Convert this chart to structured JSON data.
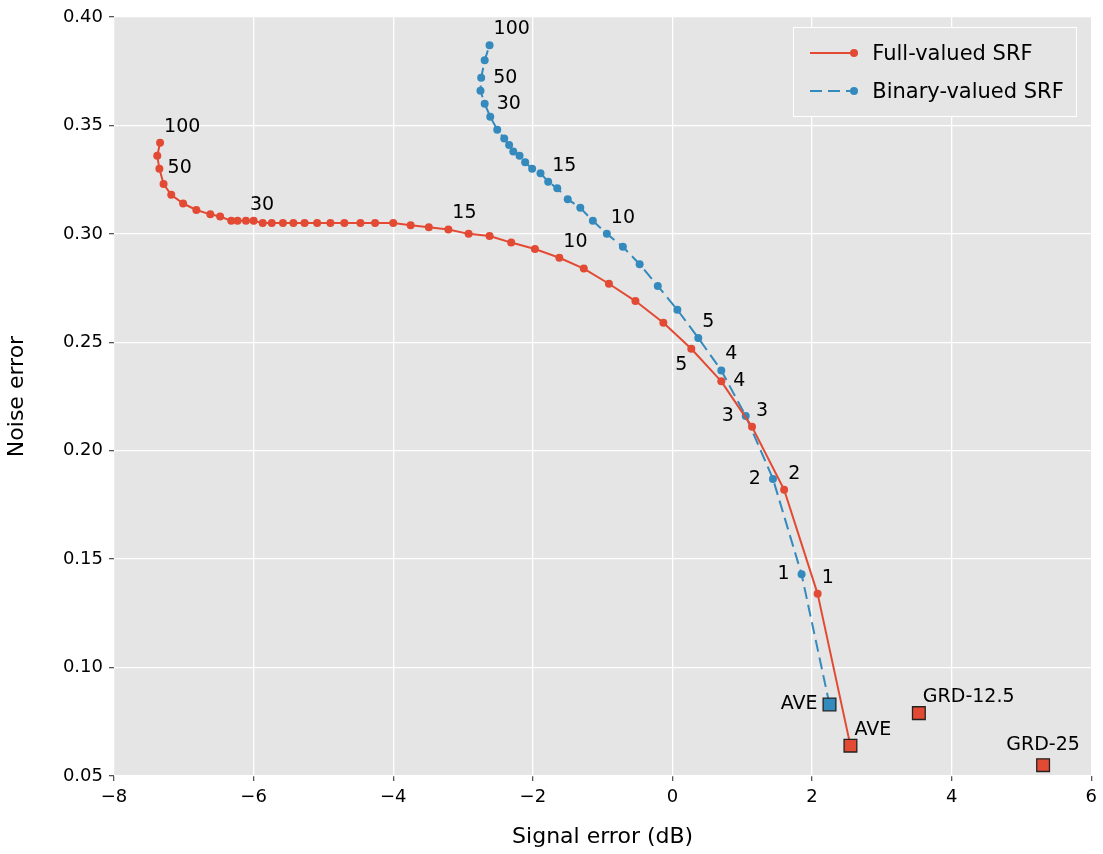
{
  "chart_data": {
    "type": "line",
    "xlabel": "Signal error (dB)",
    "ylabel": "Noise error",
    "xlim": [
      -8,
      6
    ],
    "xticks": [
      {
        "value": -8,
        "label": "−8"
      },
      {
        "value": -6,
        "label": "−6"
      },
      {
        "value": -4,
        "label": "−4"
      },
      {
        "value": -2,
        "label": "−2"
      },
      0,
      2,
      4,
      6
    ],
    "ylim": [
      0.05,
      0.4
    ],
    "yticks": [
      {
        "value": 0.05,
        "label": "0.05"
      },
      {
        "value": 0.1,
        "label": "0.10"
      },
      {
        "value": 0.15,
        "label": "0.15"
      },
      {
        "value": 0.2,
        "label": "0.20"
      },
      {
        "value": 0.25,
        "label": "0.25"
      },
      {
        "value": 0.3,
        "label": "0.30"
      },
      {
        "value": 0.35,
        "label": "0.35"
      },
      {
        "value": 0.4,
        "label": "0.40"
      }
    ],
    "grid": true,
    "legend": "top right",
    "series": [
      {
        "name": "Full-valued SRF",
        "color": "#e24a33",
        "marker": "circle",
        "line_style": "solid",
        "x": [
          2.55,
          2.08,
          1.6,
          1.14,
          0.7,
          0.27,
          -0.13,
          -0.53,
          -0.91,
          -1.27,
          -1.62,
          -1.97,
          -2.31,
          -2.62,
          -2.92,
          -3.21,
          -3.49,
          -3.75,
          -4.0,
          -4.26,
          -4.47,
          -4.7,
          -4.9,
          -5.09,
          -5.27,
          -5.43,
          -5.58,
          -5.74,
          -5.87,
          -6.0,
          -6.11,
          -6.23,
          -6.32,
          -6.48,
          -6.62,
          -6.82,
          -7.01,
          -7.18,
          -7.29,
          -7.35,
          -7.38,
          -7.34
        ],
        "values": [
          0.064,
          0.134,
          0.182,
          0.211,
          0.232,
          0.247,
          0.259,
          0.269,
          0.277,
          0.284,
          0.289,
          0.293,
          0.296,
          0.299,
          0.3,
          0.302,
          0.303,
          0.304,
          0.305,
          0.305,
          0.305,
          0.305,
          0.305,
          0.305,
          0.305,
          0.305,
          0.305,
          0.305,
          0.305,
          0.306,
          0.306,
          0.306,
          0.306,
          0.308,
          0.309,
          0.311,
          0.314,
          0.318,
          0.323,
          0.33,
          0.336,
          0.342
        ]
      },
      {
        "name": "Binary-valued SRF",
        "color": "#348abd",
        "marker": "circle",
        "line_style": "dashed",
        "x": [
          2.25,
          1.85,
          1.44,
          1.05,
          0.7,
          0.37,
          0.07,
          -0.21,
          -0.47,
          -0.71,
          -0.94,
          -1.14,
          -1.32,
          -1.5,
          -1.65,
          -1.78,
          -1.89,
          -2.01,
          -2.11,
          -2.19,
          -2.28,
          -2.34,
          -2.41,
          -2.51,
          -2.61,
          -2.69,
          -2.75,
          -2.74,
          -2.69,
          -2.62
        ],
        "values": [
          0.083,
          0.143,
          0.187,
          0.216,
          0.237,
          0.252,
          0.265,
          0.276,
          0.286,
          0.294,
          0.3,
          0.306,
          0.312,
          0.316,
          0.321,
          0.324,
          0.328,
          0.33,
          0.333,
          0.336,
          0.338,
          0.341,
          0.344,
          0.348,
          0.354,
          0.36,
          0.366,
          0.372,
          0.38,
          0.387
        ]
      },
      {
        "type": "scatter",
        "color": "#e24a33",
        "marker": "square",
        "x": [
          2.55,
          3.53,
          5.31
        ],
        "values": [
          0.064,
          0.079,
          0.055
        ]
      },
      {
        "type": "scatter",
        "color": "#348abd",
        "marker": "square",
        "x": [
          2.25
        ],
        "values": [
          0.083
        ]
      }
    ],
    "annotations": [
      {
        "text": "100",
        "x": -7.34,
        "y": 0.342
      },
      {
        "text": "50",
        "x": -7.29,
        "y": 0.323
      },
      {
        "text": "30",
        "x": -6.11,
        "y": 0.306
      },
      {
        "text": "15",
        "x": -3.21,
        "y": 0.302
      },
      {
        "text": "10",
        "x": -1.62,
        "y": 0.289
      },
      {
        "text": "5",
        "x": 0.27,
        "y": 0.247
      },
      {
        "text": "4",
        "x": 0.7,
        "y": 0.232
      },
      {
        "text": "3",
        "x": 1.14,
        "y": 0.211
      },
      {
        "text": "2",
        "x": 1.6,
        "y": 0.182
      },
      {
        "text": "1",
        "x": 2.08,
        "y": 0.134
      },
      {
        "text": "AVE",
        "x": 2.55,
        "y": 0.064
      },
      {
        "text": "100",
        "x": -2.62,
        "y": 0.387
      },
      {
        "text": "50",
        "x": -2.74,
        "y": 0.372
      },
      {
        "text": "30",
        "x": -2.69,
        "y": 0.36
      },
      {
        "text": "15",
        "x": -1.78,
        "y": 0.324
      },
      {
        "text": "10",
        "x": -0.94,
        "y": 0.3
      },
      {
        "text": "5",
        "x": 0.37,
        "y": 0.252
      },
      {
        "text": "4",
        "x": 0.7,
        "y": 0.237
      },
      {
        "text": "3",
        "x": 1.05,
        "y": 0.216
      },
      {
        "text": "2",
        "x": 1.44,
        "y": 0.187
      },
      {
        "text": "1",
        "x": 1.85,
        "y": 0.143
      },
      {
        "text": "AVE",
        "x": 2.25,
        "y": 0.083
      },
      {
        "text": "GRD-12.5",
        "x": 3.53,
        "y": 0.079
      },
      {
        "text": "GRD-25",
        "x": 5.31,
        "y": 0.055
      }
    ]
  }
}
